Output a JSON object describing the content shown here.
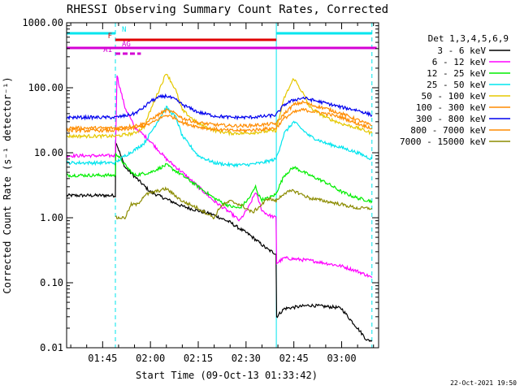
{
  "chart_data": {
    "type": "line",
    "title": "RHESSI Observing Summary Count Rates, Corrected",
    "xlabel": "Start Time (09-Oct-13 01:33:42)",
    "ylabel": "Corrected Count Rate (s⁻¹ detector⁻¹)",
    "y_scale": "log",
    "ylim": [
      0.01,
      1000
    ],
    "y_ticks": [
      "0.01",
      "0.10",
      "1.00",
      "10.00",
      "100.00",
      "1000.00"
    ],
    "x_ticks": [
      "01:45",
      "02:00",
      "02:15",
      "02:30",
      "02:45",
      "03:00"
    ],
    "x_range_minutes_after_0130": [
      3.7,
      101.6
    ],
    "legend_title": "Det 1,3,4,5,6,9",
    "legend_position": "right",
    "timestamp": "22-Oct-2021 19:50",
    "flags": [
      {
        "label": "N",
        "color": "#00e5ee",
        "segments": [
          [
            3.7,
            19.0
          ],
          [
            69.5,
            99.5
          ]
        ]
      },
      {
        "label": "F",
        "color": "#e00000",
        "segments": [
          [
            19.0,
            69.5
          ]
        ]
      },
      {
        "label": "AG",
        "color": "#d400d4",
        "segments": [
          [
            3.7,
            101.0
          ]
        ]
      },
      {
        "label": "A1",
        "color": "#d400d4",
        "segments": [
          [
            19.0,
            27.0
          ]
        ],
        "style": "dashed"
      }
    ],
    "vertical_markers": [
      {
        "t": 3.7,
        "color": "#00e5ee",
        "style": "solid"
      },
      {
        "t": 19.0,
        "color": "#00e5ee",
        "style": "dashed"
      },
      {
        "t": 69.5,
        "color": "#00e5ee",
        "style": "solid"
      },
      {
        "t": 99.5,
        "color": "#00e5ee",
        "style": "dashed"
      }
    ],
    "series": [
      {
        "name": "3 - 6 keV",
        "color": "#000000",
        "t": [
          3.7,
          19.0,
          19.1,
          22,
          30,
          40,
          50,
          55,
          58,
          61,
          64,
          67,
          69.4,
          69.6,
          72,
          80,
          85,
          88,
          90,
          92,
          95,
          98,
          99.5
        ],
        "values": [
          2.2,
          2.2,
          15,
          6,
          2.5,
          1.5,
          1.1,
          0.85,
          0.68,
          0.55,
          0.42,
          0.32,
          0.28,
          0.03,
          0.04,
          0.045,
          0.043,
          0.042,
          0.04,
          0.03,
          0.02,
          0.013,
          0.013
        ]
      },
      {
        "name": "6 - 12 keV",
        "color": "#ff00ff",
        "t": [
          3.7,
          19.0,
          19.5,
          20,
          22,
          25,
          30,
          35,
          40,
          45,
          50,
          55,
          58,
          61,
          63,
          64,
          65,
          67,
          69.4,
          69.6,
          72,
          80,
          85,
          90,
          95,
          98,
          99.5
        ],
        "values": [
          9,
          9,
          160,
          120,
          50,
          25,
          15,
          8,
          5,
          3,
          1.8,
          1.2,
          0.9,
          1.5,
          2.5,
          1.8,
          1.3,
          1.1,
          1.0,
          0.2,
          0.24,
          0.22,
          0.2,
          0.18,
          0.15,
          0.13,
          0.12
        ]
      },
      {
        "name": "12 - 25 keV",
        "color": "#00ee00",
        "t": [
          3.7,
          19.0,
          19.1,
          22,
          25,
          30,
          35,
          40,
          45,
          50,
          55,
          58,
          61,
          63,
          64,
          65,
          67,
          69.4,
          69.6,
          72,
          75,
          80,
          85,
          90,
          95,
          99.5
        ],
        "values": [
          4.5,
          4.5,
          10,
          6.5,
          4.5,
          5,
          6.5,
          4.5,
          3,
          2,
          1.5,
          1.4,
          2,
          3,
          2.2,
          1.9,
          2,
          2.3,
          2.5,
          4.5,
          6,
          4.5,
          3.5,
          2.5,
          2,
          1.8
        ]
      },
      {
        "name": "25 - 50 keV",
        "color": "#00e5ee",
        "t": [
          3.7,
          19.0,
          22,
          25,
          28,
          30,
          33,
          35,
          38,
          40,
          45,
          50,
          55,
          60,
          65,
          69.4,
          72,
          75,
          78,
          80,
          85,
          90,
          95,
          99.5
        ],
        "values": [
          7,
          7,
          9,
          11,
          14,
          20,
          35,
          50,
          35,
          18,
          9,
          7,
          6.5,
          6.5,
          7,
          8,
          20,
          30,
          22,
          18,
          14,
          12,
          10,
          8
        ]
      },
      {
        "name": "50 - 100 keV",
        "color": "#e5c800",
        "t": [
          3.7,
          19.0,
          22,
          25,
          28,
          30,
          33,
          35,
          38,
          40,
          45,
          50,
          55,
          60,
          65,
          69.4,
          72,
          75,
          78,
          80,
          85,
          90,
          95,
          99.5
        ],
        "values": [
          18,
          18,
          19,
          20,
          25,
          45,
          100,
          170,
          90,
          45,
          28,
          22,
          20,
          20,
          21,
          22,
          70,
          140,
          80,
          50,
          35,
          28,
          24,
          20
        ]
      },
      {
        "name": "100 - 300 keV",
        "color": "#ff8c00",
        "t": [
          3.7,
          19.0,
          22,
          25,
          28,
          30,
          33,
          35,
          38,
          40,
          45,
          50,
          55,
          60,
          65,
          69.4,
          72,
          75,
          78,
          80,
          85,
          90,
          95,
          99.5
        ],
        "values": [
          24,
          24,
          25,
          26,
          28,
          32,
          40,
          45,
          40,
          34,
          29,
          27,
          26,
          26,
          27,
          28,
          40,
          55,
          60,
          55,
          48,
          40,
          32,
          26
        ]
      },
      {
        "name": "300 - 800 keV",
        "color": "#0000ee",
        "t": [
          3.7,
          19.0,
          22,
          25,
          28,
          30,
          33,
          35,
          38,
          40,
          45,
          50,
          55,
          60,
          65,
          69.4,
          72,
          75,
          78,
          80,
          85,
          90,
          95,
          99.5
        ],
        "values": [
          35,
          35,
          37,
          40,
          50,
          62,
          72,
          75,
          65,
          55,
          42,
          37,
          35,
          35,
          36,
          38,
          55,
          65,
          70,
          66,
          58,
          50,
          45,
          38
        ]
      },
      {
        "name": "800 - 7000 keV",
        "color": "#ff8c00",
        "t": [
          3.7,
          19.0,
          22,
          25,
          28,
          30,
          33,
          35,
          38,
          40,
          45,
          50,
          55,
          60,
          65,
          69.4,
          72,
          75,
          78,
          80,
          85,
          90,
          95,
          99.5
        ],
        "values": [
          22,
          22,
          23,
          24,
          26,
          28,
          34,
          38,
          34,
          29,
          25,
          23,
          22,
          22,
          23,
          24,
          34,
          42,
          46,
          44,
          40,
          35,
          28,
          24
        ]
      },
      {
        "name": "7000 - 15000 keV",
        "color": "#8b8b00",
        "t": [
          19.0,
          19.5,
          20,
          22,
          24,
          26,
          28,
          30,
          35,
          40,
          45,
          50,
          52,
          55,
          58,
          60,
          62,
          65,
          67,
          69.4,
          72,
          75,
          80,
          85,
          90,
          95,
          99.5
        ],
        "values": [
          1.0,
          1.0,
          1.0,
          1.0,
          1.6,
          1.6,
          2.2,
          2.4,
          2.8,
          1.8,
          1.4,
          1.0,
          1.5,
          1.8,
          1.6,
          1.4,
          1.2,
          1.6,
          2.0,
          1.8,
          2.4,
          2.6,
          2.0,
          1.8,
          1.6,
          1.4,
          1.4
        ]
      },
      {
        "name": "Det 1,3,4,5,6,9",
        "color": "#000000",
        "t": [],
        "values": []
      }
    ]
  }
}
